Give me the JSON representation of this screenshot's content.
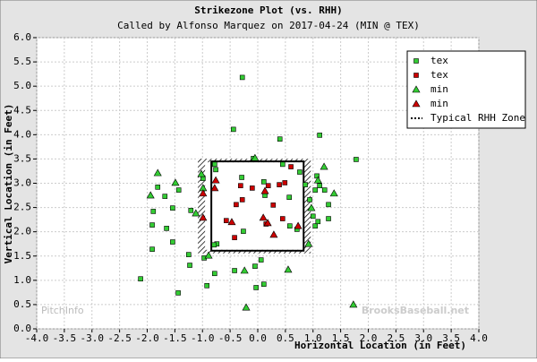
{
  "chart_data": {
    "type": "scatter",
    "title": "Strikezone Plot (vs. RHH)",
    "subtitle": "Called by Alfonso Marquez on 2017-04-24 (MIN @ TEX)",
    "x_label": "Horizontal Location (in Feet)",
    "y_label": "Vertical Location (in Feet)",
    "watermarks": [
      "PitchInfo",
      "BrooksBaseball.net"
    ],
    "xlim": [
      -4,
      4
    ],
    "ylim": [
      0,
      6
    ],
    "grid": true,
    "legend": "top-right",
    "xticks": [
      {
        "value": -4,
        "label": "-4.0"
      },
      {
        "value": -3.5,
        "label": "-3.5"
      },
      {
        "value": -3,
        "label": "-3.0"
      },
      {
        "value": -2.5,
        "label": "-2.5"
      },
      {
        "value": -2,
        "label": "-2.0"
      },
      {
        "value": -1.5,
        "label": "-1.5"
      },
      {
        "value": -1,
        "label": "-1.0"
      },
      {
        "value": -0.5,
        "label": "-0.5"
      },
      {
        "value": 0,
        "label": "0.0"
      },
      {
        "value": 0.5,
        "label": "0.5"
      },
      {
        "value": 1,
        "label": "1.0"
      },
      {
        "value": 1.5,
        "label": "1.5"
      },
      {
        "value": 2,
        "label": "2.0"
      },
      {
        "value": 2.5,
        "label": "2.5"
      },
      {
        "value": 3,
        "label": "3.0"
      },
      {
        "value": 3.5,
        "label": "3.5"
      },
      {
        "value": 4,
        "label": "4.0"
      }
    ],
    "yticks": [
      {
        "value": 0,
        "label": "0.0"
      },
      {
        "value": 0.5,
        "label": "0.5"
      },
      {
        "value": 1,
        "label": "1.0"
      },
      {
        "value": 1.5,
        "label": "1.5"
      },
      {
        "value": 2,
        "label": "2.0"
      },
      {
        "value": 2.5,
        "label": "2.5"
      },
      {
        "value": 3,
        "label": "3.0"
      },
      {
        "value": 3.5,
        "label": "3.5"
      },
      {
        "value": 4,
        "label": "4.0"
      },
      {
        "value": 4.5,
        "label": "4.5"
      },
      {
        "value": 5,
        "label": "5.0"
      },
      {
        "value": 5.5,
        "label": "5.5"
      },
      {
        "value": 6,
        "label": "6.0"
      }
    ],
    "series": [
      {
        "name": "tex",
        "color": "#33cc33",
        "marker": "square",
        "x": [
          -0.28,
          -0.44,
          0.4,
          1.12,
          1.78,
          -1.81,
          -1.68,
          -1.43,
          -1.89,
          -1.54,
          -1.21,
          -1.91,
          -1.65,
          -1.54,
          -1.91,
          -1.25,
          -1.23,
          -0.97,
          -0.74,
          -0.79,
          -2.12,
          -1.44,
          -0.92,
          -0.78,
          -0.42,
          -0.05,
          0.06,
          -0.03,
          0.11,
          -0.78,
          -0.76,
          -0.99,
          -0.08,
          -0.29,
          0.13,
          0.11,
          0.45,
          0.76,
          0.86,
          0.57,
          0.58,
          0.71,
          0.94,
          1.04,
          1.07,
          1.12,
          1.21,
          1.28,
          1.0,
          1.04,
          1.09,
          1.28,
          -0.26
        ],
        "values": [
          5.18,
          4.11,
          3.91,
          3.99,
          3.49,
          2.92,
          2.73,
          2.86,
          2.42,
          2.49,
          2.44,
          2.14,
          2.07,
          1.79,
          1.64,
          1.53,
          1.31,
          1.46,
          1.75,
          1.73,
          1.03,
          0.74,
          0.89,
          1.14,
          1.2,
          1.29,
          1.42,
          0.85,
          0.92,
          3.39,
          3.28,
          3.1,
          3.51,
          3.12,
          2.75,
          3.03,
          3.39,
          3.23,
          2.97,
          2.71,
          2.12,
          2.05,
          2.66,
          2.86,
          3.15,
          2.95,
          2.86,
          2.56,
          2.32,
          2.12,
          2.21,
          2.27,
          2.01
        ]
      },
      {
        "name": "tex",
        "color": "#cc0000",
        "marker": "square",
        "x": [
          -0.57,
          -0.28,
          -0.42,
          -0.1,
          0.19,
          0.28,
          0.39,
          0.49,
          0.45,
          0.15,
          -0.39,
          0.6,
          -0.31
        ],
        "values": [
          2.23,
          2.66,
          1.88,
          2.9,
          2.95,
          2.55,
          2.97,
          3.01,
          2.27,
          2.16,
          2.56,
          3.34,
          2.95
        ]
      },
      {
        "name": "min",
        "color": "#33cc33",
        "marker": "triangle",
        "x": [
          -1.81,
          -1.94,
          -1.49,
          -1.12,
          -1.02,
          -0.99,
          -0.89,
          -0.24,
          -0.21,
          -0.05,
          0.55,
          0.92,
          1.09,
          1.2,
          1.38,
          0.97,
          1.73
        ],
        "values": [
          3.21,
          2.75,
          3.01,
          2.38,
          3.19,
          2.9,
          1.51,
          1.2,
          0.44,
          3.52,
          1.22,
          1.75,
          3.06,
          3.34,
          2.79,
          2.49,
          0.5
        ]
      },
      {
        "name": "min",
        "color": "#cc0000",
        "marker": "triangle",
        "x": [
          -0.99,
          -0.76,
          -0.78,
          -0.99,
          -0.47,
          0.13,
          0.1,
          0.18,
          0.29,
          0.73
        ],
        "values": [
          2.79,
          3.06,
          2.9,
          2.29,
          2.2,
          2.84,
          2.29,
          2.18,
          1.94,
          2.12
        ]
      }
    ],
    "zone": {
      "name": "Typical RHH Zone",
      "x": [
        -0.84,
        0.83
      ],
      "y": [
        1.61,
        3.45
      ]
    }
  }
}
